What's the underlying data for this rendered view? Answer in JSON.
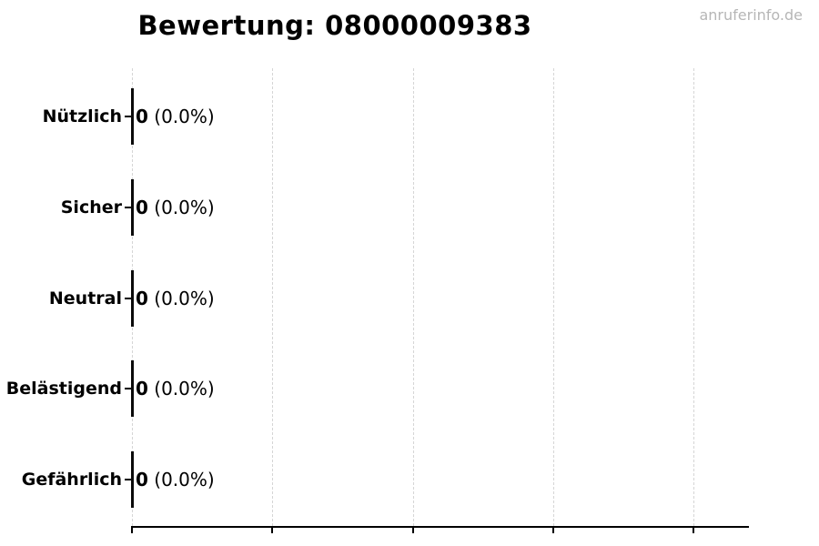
{
  "watermark": "anruferinfo.de",
  "chart_data": {
    "type": "bar",
    "orientation": "horizontal",
    "title": "Bewertung: 08000009383",
    "categories": [
      "Nützlich",
      "Sicher",
      "Neutral",
      "Belästigend",
      "Gefährlich"
    ],
    "values": [
      0,
      0,
      0,
      0,
      0
    ],
    "percent_labels": [
      "(0.0%)",
      "(0.0%)",
      "(0.0%)",
      "(0.0%)",
      "(0.0%)"
    ],
    "xlabel": "",
    "ylabel": "",
    "x_tick_labels": [],
    "grid": true,
    "grid_style": "dashed-vertical",
    "legend": false,
    "bar_color": "#0a0a0a",
    "grid_color": "#d5d5d5",
    "axis_color": "#000000",
    "text_color": "#000000",
    "watermark_color": "#b6b6b6",
    "background_color": "#ffffff"
  }
}
